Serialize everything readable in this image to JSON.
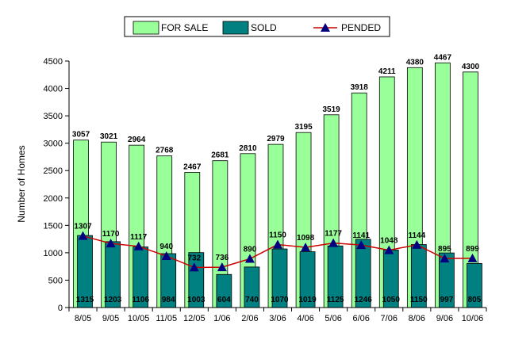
{
  "chart_data": {
    "type": "bar",
    "categories": [
      "8/05",
      "9/05",
      "10/05",
      "11/05",
      "12/05",
      "1/06",
      "2/06",
      "3/06",
      "4/06",
      "5/06",
      "6/06",
      "7/06",
      "8/06",
      "9/06",
      "10/06"
    ],
    "series": [
      {
        "name": "FOR SALE",
        "type": "bar",
        "color": "#99ff99",
        "values": [
          3057,
          3021,
          2964,
          2768,
          2467,
          2681,
          2810,
          2979,
          3195,
          3519,
          3918,
          4211,
          4380,
          4467,
          4300
        ]
      },
      {
        "name": "SOLD",
        "type": "bar",
        "color": "#008080",
        "values": [
          1315,
          1203,
          1106,
          984,
          1003,
          604,
          740,
          1070,
          1019,
          1125,
          1246,
          1050,
          1150,
          997,
          805
        ]
      },
      {
        "name": "PENDED",
        "type": "line",
        "color": "#cc0000",
        "marker_color": "#000080",
        "values": [
          1307,
          1170,
          1117,
          940,
          732,
          736,
          890,
          1150,
          1098,
          1177,
          1141,
          1048,
          1144,
          895,
          899
        ]
      }
    ],
    "ylabel": "Number of Homes",
    "ylim": [
      0,
      4500
    ],
    "yticks": [
      0,
      500,
      1000,
      1500,
      2000,
      2500,
      3000,
      3500,
      4000,
      4500
    ],
    "legend": "top-center"
  }
}
